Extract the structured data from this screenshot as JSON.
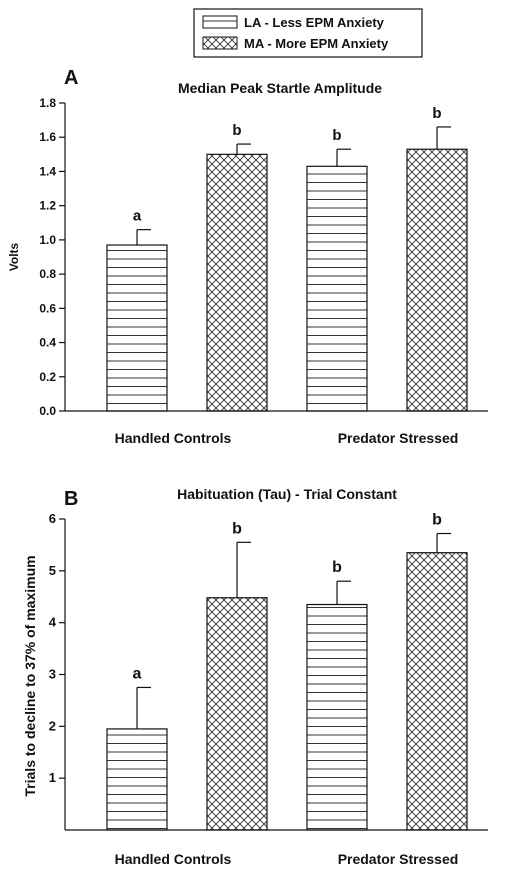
{
  "legend": {
    "entries": [
      {
        "label": "LA - Less EPM Anxiety",
        "pattern": "horizontal-lines"
      },
      {
        "label": "MA - More EPM Anxiety",
        "pattern": "crosshatch"
      }
    ]
  },
  "colors": {
    "bar_stroke": "#111111",
    "pattern_line": "#333333",
    "background": "#ffffff"
  },
  "chart_data": [
    {
      "type": "bar",
      "panel_label": "A",
      "title": "Median Peak Startle Amplitude",
      "ylabel": "Volts",
      "xlabel": "",
      "ylim": [
        0,
        1.8
      ],
      "yticks": [
        "0.0",
        "0.2",
        "0.4",
        "0.6",
        "0.8",
        "1.0",
        "1.2",
        "1.4",
        "1.6",
        "1.8"
      ],
      "grid": false,
      "categories": [
        "Handled Controls",
        "Predator Stressed"
      ],
      "series": [
        {
          "name": "LA - Less EPM Anxiety",
          "values": [
            0.97,
            1.43
          ],
          "errors": [
            0.09,
            0.1
          ],
          "labels": [
            "a",
            "b"
          ]
        },
        {
          "name": "MA - More EPM Anxiety",
          "values": [
            1.5,
            1.53
          ],
          "errors": [
            0.06,
            0.13
          ],
          "labels": [
            "b",
            "b"
          ]
        }
      ]
    },
    {
      "type": "bar",
      "panel_label": "B",
      "title": "Habituation (Tau) - Trial Constant",
      "ylabel": "Trials to decline to 37% of maximum",
      "xlabel": "",
      "ylim": [
        0,
        6
      ],
      "yticks": [
        "1",
        "2",
        "3",
        "4",
        "5",
        "6"
      ],
      "grid": false,
      "categories": [
        "Handled Controls",
        "Predator Stressed"
      ],
      "series": [
        {
          "name": "LA - Less EPM Anxiety",
          "values": [
            1.95,
            4.35
          ],
          "errors": [
            0.8,
            0.45
          ],
          "labels": [
            "a",
            "b"
          ]
        },
        {
          "name": "MA - More EPM Anxiety",
          "values": [
            4.48,
            5.35
          ],
          "errors": [
            1.07,
            0.37
          ],
          "labels": [
            "b",
            "b"
          ]
        }
      ]
    }
  ]
}
